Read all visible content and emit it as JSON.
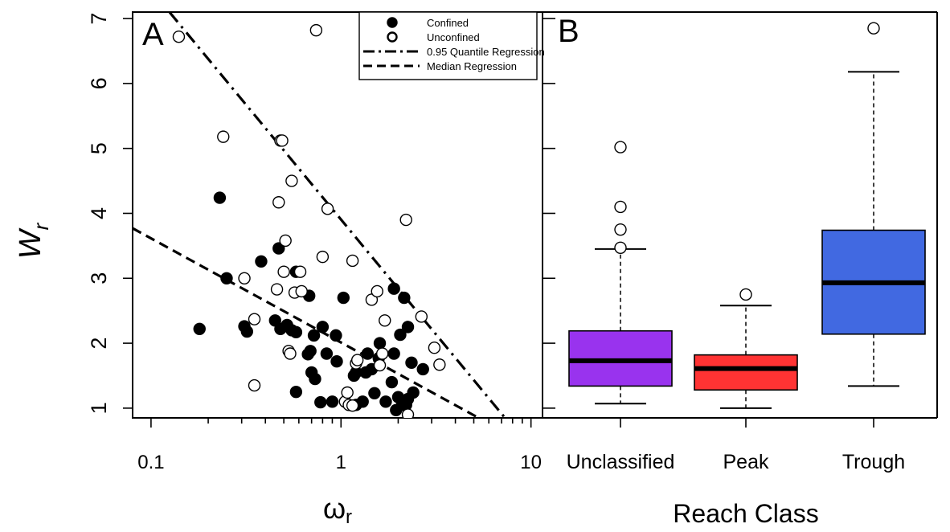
{
  "chart_data": [
    {
      "type": "scatter",
      "panel_label": "A",
      "x_scale": "log10",
      "xlim": [
        0.08,
        11.5
      ],
      "ylim": [
        0.85,
        7.1
      ],
      "xticks": [
        0.1,
        1,
        10
      ],
      "xtick_labels": [
        "0.1",
        "1",
        "10"
      ],
      "yticks": [
        1,
        2,
        3,
        4,
        5,
        6,
        7
      ],
      "ytick_labels": [
        "1",
        "2",
        "3",
        "4",
        "5",
        "6",
        "7"
      ],
      "ylabel": "W",
      "ylabel_sub": "r",
      "xlabel": "ω",
      "xlabel_sub": "r",
      "legend": {
        "placement": "top-right",
        "entries": [
          {
            "label": "Confined",
            "marker": "filled-circle"
          },
          {
            "label": "Unconfined",
            "marker": "open-circle"
          },
          {
            "label": "0.95 Quantile Regression",
            "line": "dash-dot"
          },
          {
            "label": "Median Regression",
            "line": "dashed"
          }
        ]
      },
      "series": [
        {
          "name": "Confined",
          "points": [
            [
              0.18,
              2.22
            ],
            [
              0.23,
              4.24
            ],
            [
              0.25,
              3.0
            ],
            [
              0.31,
              2.26
            ],
            [
              0.32,
              2.18
            ],
            [
              0.38,
              3.26
            ],
            [
              0.45,
              2.35
            ],
            [
              0.47,
              3.46
            ],
            [
              0.48,
              2.22
            ],
            [
              0.52,
              2.28
            ],
            [
              0.55,
              2.2
            ],
            [
              0.58,
              2.17
            ],
            [
              0.58,
              1.25
            ],
            [
              0.58,
              3.1
            ],
            [
              0.67,
              1.83
            ],
            [
              0.68,
              2.73
            ],
            [
              0.69,
              1.88
            ],
            [
              0.7,
              1.55
            ],
            [
              0.72,
              2.12
            ],
            [
              0.73,
              1.45
            ],
            [
              0.78,
              1.09
            ],
            [
              0.8,
              2.25
            ],
            [
              0.84,
              1.84
            ],
            [
              0.9,
              1.1
            ],
            [
              0.94,
              2.12
            ],
            [
              0.95,
              1.72
            ],
            [
              1.03,
              2.7
            ],
            [
              1.17,
              1.5
            ],
            [
              1.2,
              1.05
            ],
            [
              1.2,
              1.55
            ],
            [
              1.3,
              1.1
            ],
            [
              1.35,
              1.55
            ],
            [
              1.38,
              1.84
            ],
            [
              1.45,
              1.6
            ],
            [
              1.5,
              1.23
            ],
            [
              1.58,
              1.77
            ],
            [
              1.6,
              2.0
            ],
            [
              1.72,
              1.1
            ],
            [
              1.85,
              1.4
            ],
            [
              1.9,
              1.84
            ],
            [
              1.9,
              2.84
            ],
            [
              1.95,
              0.97
            ],
            [
              2.0,
              1.17
            ],
            [
              2.05,
              2.13
            ],
            [
              2.1,
              1.05
            ],
            [
              2.15,
              2.7
            ],
            [
              2.2,
              1.05
            ],
            [
              2.25,
              1.14
            ],
            [
              2.25,
              2.25
            ],
            [
              2.35,
              1.7
            ],
            [
              2.4,
              1.24
            ],
            [
              2.7,
              1.6
            ]
          ]
        },
        {
          "name": "Unconfined",
          "points": [
            [
              0.14,
              6.72
            ],
            [
              0.24,
              5.18
            ],
            [
              0.31,
              3.0
            ],
            [
              0.35,
              2.37
            ],
            [
              0.35,
              1.35
            ],
            [
              0.46,
              2.83
            ],
            [
              0.47,
              4.17
            ],
            [
              0.48,
              5.12
            ],
            [
              0.49,
              5.12
            ],
            [
              0.5,
              3.1
            ],
            [
              0.51,
              3.58
            ],
            [
              0.53,
              1.88
            ],
            [
              0.54,
              1.84
            ],
            [
              0.55,
              4.5
            ],
            [
              0.57,
              2.78
            ],
            [
              0.61,
              3.1
            ],
            [
              0.62,
              2.8
            ],
            [
              0.74,
              6.82
            ],
            [
              0.8,
              3.33
            ],
            [
              0.85,
              4.07
            ],
            [
              1.05,
              1.1
            ],
            [
              1.08,
              1.24
            ],
            [
              1.1,
              1.05
            ],
            [
              1.15,
              3.27
            ],
            [
              1.15,
              1.04
            ],
            [
              1.2,
              1.69
            ],
            [
              1.22,
              1.74
            ],
            [
              1.45,
              2.67
            ],
            [
              1.55,
              2.8
            ],
            [
              1.6,
              1.66
            ],
            [
              1.65,
              1.84
            ],
            [
              1.7,
              2.35
            ],
            [
              2.2,
              3.9
            ],
            [
              2.25,
              0.9
            ],
            [
              2.65,
              2.41
            ],
            [
              3.1,
              1.93
            ],
            [
              3.3,
              1.67
            ]
          ]
        }
      ],
      "regression_lines": [
        {
          "name": "0.95 Quantile Regression",
          "style": "dash-dot",
          "from": [
            0.125,
            7.1
          ],
          "to": [
            7.3,
            0.85
          ]
        },
        {
          "name": "Median Regression",
          "style": "dashed",
          "from": [
            0.08,
            3.77
          ],
          "to": [
            5.3,
            0.85
          ]
        }
      ]
    },
    {
      "type": "boxplot",
      "panel_label": "B",
      "ylim": [
        0.85,
        7.1
      ],
      "categories": [
        "Unclassified",
        "Peak",
        "Trough"
      ],
      "xlabel": "Reach Class",
      "boxes": [
        {
          "category": "Unclassified",
          "color": "#9933ee",
          "whisker_low": 1.07,
          "q1": 1.34,
          "median": 1.73,
          "q3": 2.19,
          "whisker_high": 3.45,
          "outliers": [
            3.47,
            3.75,
            4.1,
            5.02
          ]
        },
        {
          "category": "Peak",
          "color": "#ff3333",
          "whisker_low": 1.0,
          "q1": 1.28,
          "median": 1.61,
          "q3": 1.82,
          "whisker_high": 2.58,
          "outliers": [
            2.75
          ]
        },
        {
          "category": "Trough",
          "color": "#4169e1",
          "whisker_low": 1.34,
          "q1": 2.14,
          "median": 2.93,
          "q3": 3.74,
          "whisker_high": 6.18,
          "outliers": [
            6.85
          ]
        }
      ]
    }
  ]
}
